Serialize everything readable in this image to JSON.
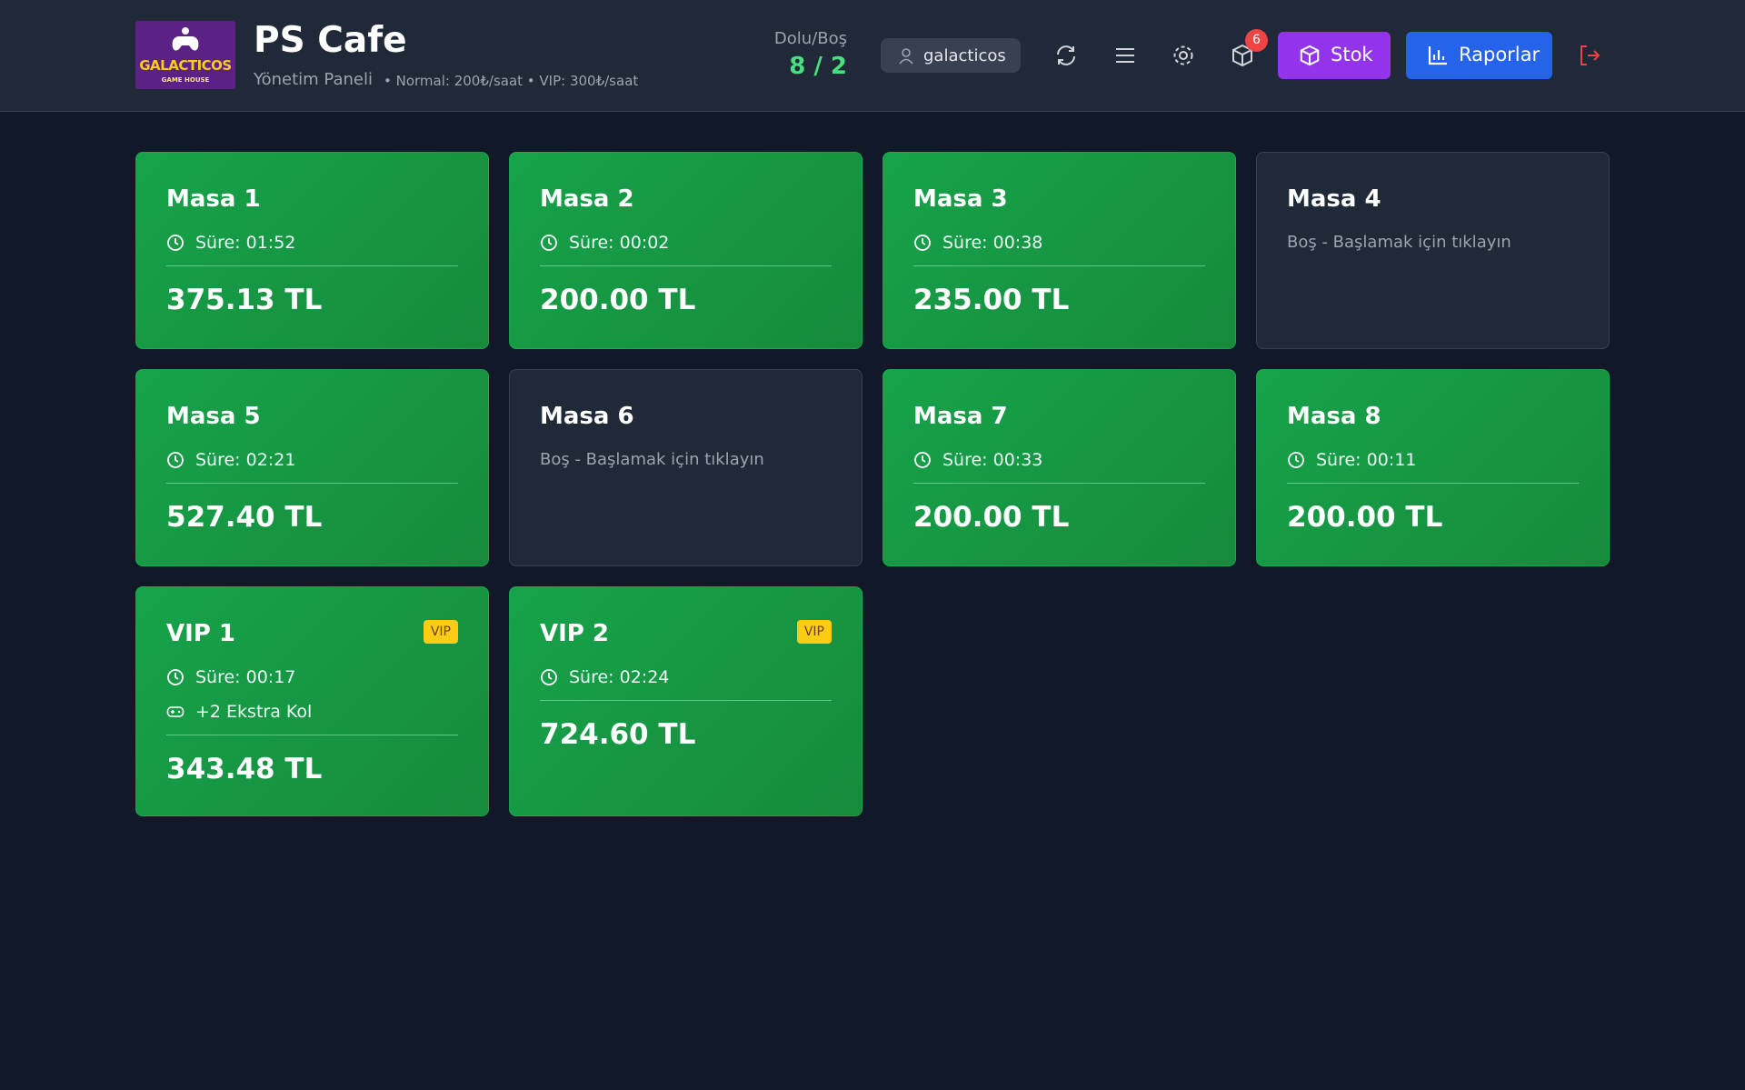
{
  "header": {
    "logo": {
      "title": "GALACTICOS",
      "subtitle": "GAME HOUSE"
    },
    "title": "PS Cafe",
    "subtitle": "Yönetim Paneli",
    "rates": "• Normal: 200₺/saat • VIP: 300₺/saat"
  },
  "status": {
    "label": "Dolu/Boş",
    "value": "8 / 2"
  },
  "user": "galacticos",
  "notification_count": 6,
  "buttons": {
    "stock": "Stok",
    "reports": "Raporlar"
  },
  "tables": [
    {
      "name": "Masa 1",
      "duration": "Süre: 01:52",
      "total": "375.13 TL"
    },
    {
      "name": "Masa 2",
      "duration": "Süre: 00:02",
      "total": "200.00 TL"
    },
    {
      "name": "Masa 3",
      "duration": "Süre: 00:38",
      "total": "235.00 TL"
    },
    {
      "name": "Masa 4",
      "empty_text": "Boş - Başlamak için tıklayın"
    },
    {
      "name": "Masa 5",
      "duration": "Süre: 02:21",
      "total": "527.40 TL"
    },
    {
      "name": "Masa 6",
      "empty_text": "Boş - Başlamak için tıklayın"
    },
    {
      "name": "Masa 7",
      "duration": "Süre: 00:33",
      "total": "200.00 TL"
    },
    {
      "name": "Masa 8",
      "duration": "Süre: 00:11",
      "total": "200.00 TL"
    },
    {
      "name": "VIP 1",
      "badge": "VIP",
      "duration": "Süre: 00:17",
      "extra": "+2 Ekstra Kol",
      "total": "343.48 TL"
    },
    {
      "name": "VIP 2",
      "badge": "VIP",
      "duration": "Süre: 02:24",
      "total": "724.60 TL"
    }
  ]
}
